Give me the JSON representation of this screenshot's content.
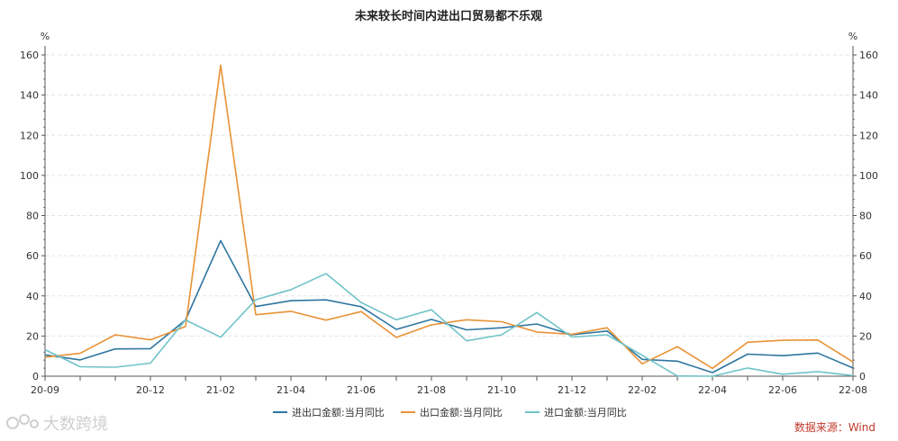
{
  "chart_data": {
    "type": "line",
    "title": "未来较长时间内进出口贸易都不乐观",
    "y_unit_left": "%",
    "y_unit_right": "%",
    "ylim": [
      0,
      160
    ],
    "yticks": [
      0,
      20,
      40,
      60,
      80,
      100,
      120,
      140,
      160
    ],
    "grid": "horizontal dashed",
    "legend_position": "bottom-center",
    "x": [
      "20-09",
      "20-10",
      "20-11",
      "20-12",
      "21-01",
      "21-02",
      "21-03",
      "21-04",
      "21-05",
      "21-06",
      "21-07",
      "21-08",
      "21-09",
      "21-10",
      "21-11",
      "21-12",
      "22-01",
      "22-02",
      "22-03",
      "22-04",
      "22-05",
      "22-06",
      "22-07",
      "22-08"
    ],
    "x_tick_labels": [
      "20-09",
      "20-12",
      "21-02",
      "21-04",
      "21-06",
      "21-08",
      "21-10",
      "21-12",
      "22-02",
      "22-04",
      "22-06",
      "22-08"
    ],
    "series": [
      {
        "name": "进出口金额:当月同比",
        "color": "#2e75a0",
        "values": [
          10.6,
          8.1,
          13.6,
          13.7,
          28.0,
          67.5,
          34.7,
          37.6,
          38.0,
          34.6,
          23.3,
          28.3,
          23.1,
          24.1,
          26.0,
          20.6,
          22.5,
          8.4,
          7.5,
          1.8,
          11.0,
          10.2,
          11.5,
          4.1
        ]
      },
      {
        "name": "出口金额:当月同比",
        "color": "#e89235",
        "values": [
          9.5,
          11.4,
          20.6,
          18.1,
          24.8,
          154.9,
          30.6,
          32.3,
          27.9,
          32.2,
          19.3,
          25.6,
          28.1,
          27.1,
          22.0,
          20.9,
          24.1,
          6.2,
          14.7,
          3.9,
          16.9,
          17.9,
          18.0,
          7.1
        ]
      },
      {
        "name": "进口金额:当月同比",
        "color": "#6fc3c8",
        "values": [
          13.2,
          4.7,
          4.5,
          6.5,
          28.0,
          19.4,
          38.1,
          43.1,
          51.1,
          36.7,
          28.1,
          33.1,
          17.6,
          20.6,
          31.7,
          19.5,
          20.6,
          10.4,
          0.1,
          0.0,
          4.1,
          1.0,
          2.3,
          0.3
        ]
      }
    ]
  },
  "source": "数据来源：Wind",
  "watermark": "大数跨境"
}
